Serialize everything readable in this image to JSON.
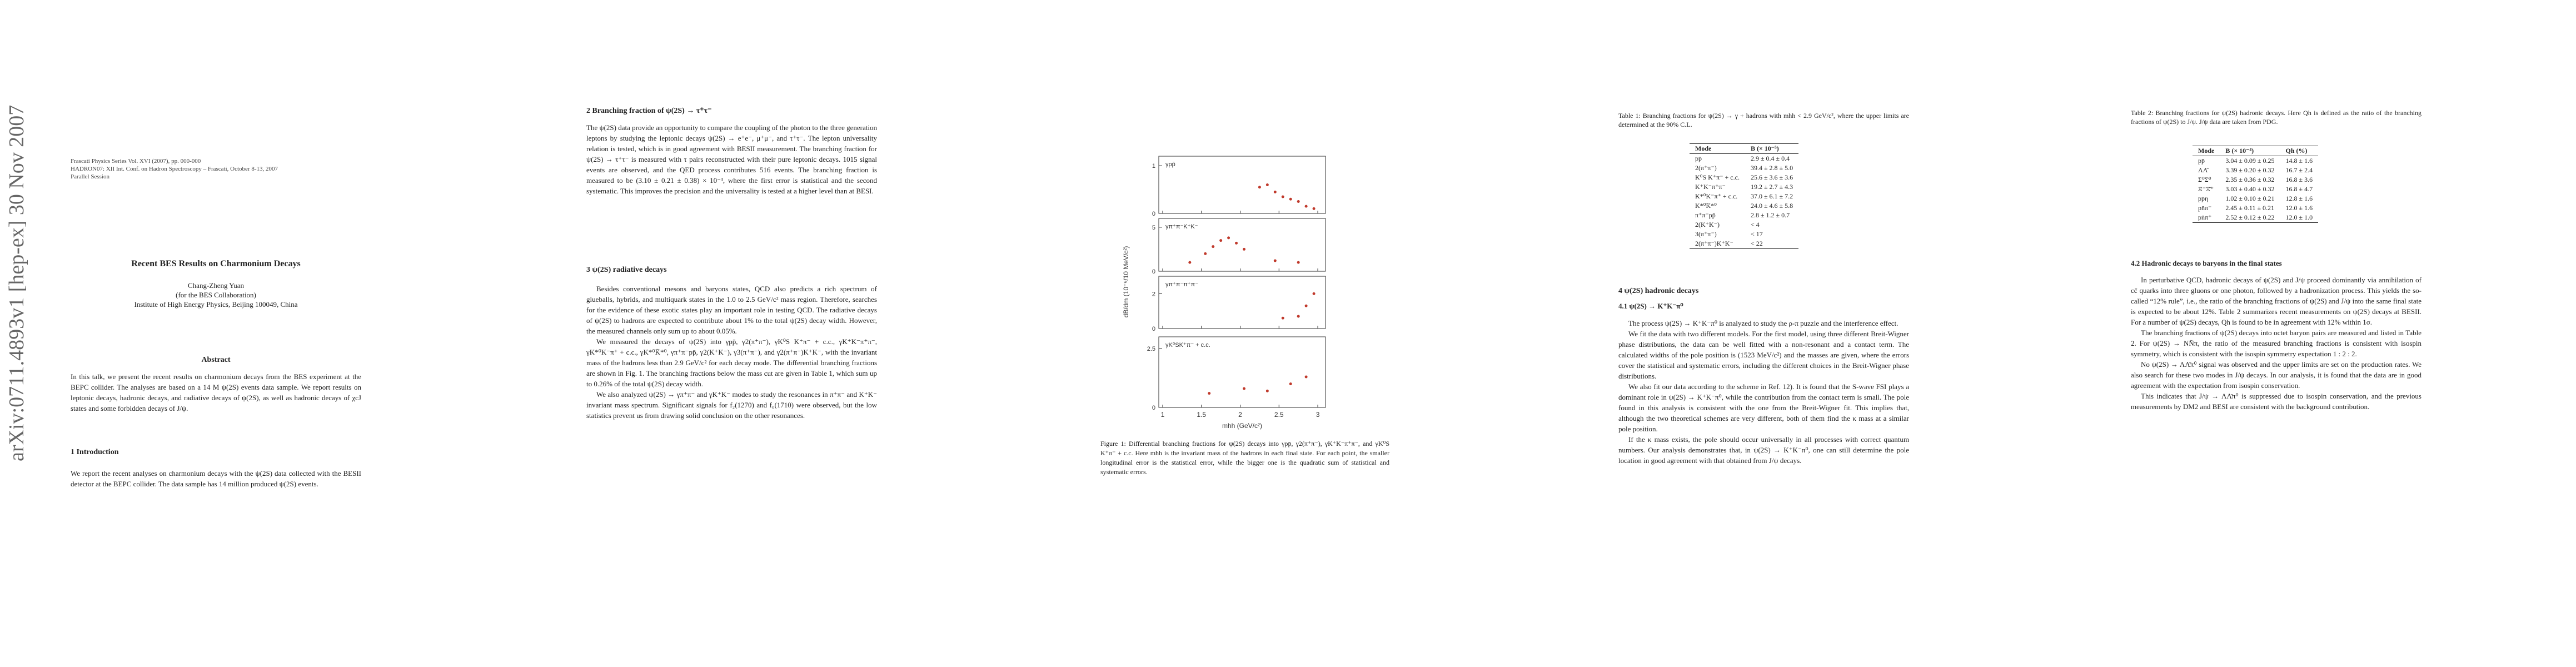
{
  "stamp": "arXiv:0711.4893v1  [hep-ex]  30 Nov 2007",
  "page1": {
    "header": [
      "Frascati Physics Series Vol. XVI (2007), pp. 000-000",
      "HADRON07: XII Int. Conf. on Hadron Spectroscopy – Frascati, October 8-13, 2007",
      "Parallel Session"
    ],
    "title": "Recent BES Results on Charmonium Decays",
    "author": "Chang-Zheng Yuan",
    "collab": "(for the BES Collaboration)",
    "institute": "Institute of High Energy Physics, Beijing 100049, China",
    "abstract_heading": "Abstract",
    "abstract": "In this talk, we present the recent results on charmonium decays from the BES experiment at the BEPC collider. The analyses are based on a 14 M ψ(2S) events data sample. We report results on leptonic decays, hadronic decays, and radiative decays of ψ(2S), as well as hadronic decays of χcJ states and some forbidden decays of J/ψ.",
    "section1_heading": "1    Introduction",
    "section1_text": "We report the recent analyses on charmonium decays with the ψ(2S) data collected with the BESII detector at the BEPC collider. The data sample has 14 million produced ψ(2S) events."
  },
  "page2": {
    "section2_heading": "2    Branching fraction of ψ(2S) → τ⁺τ⁻",
    "section2_text": "The ψ(2S) data provide an opportunity to compare the coupling of the photon to the three generation leptons by studying the leptonic decays ψ(2S) → e⁺e⁻, μ⁺μ⁻, and τ⁺τ⁻. The lepton universality relation is tested, which is in good agreement with BESII measurement. The branching fraction for ψ(2S) → τ⁺τ⁻ is measured with τ pairs reconstructed with their pure leptonic decays. 1015 signal events are observed, and the QED process contributes 516 events. The branching fraction is measured to be (3.10 ± 0.21 ± 0.38) × 10⁻³, where the first error is statistical and the second systematic. This improves the precision and the universality is tested at a higher level than at BESI.",
    "section3_heading": "3    ψ(2S) radiative decays",
    "section3_paragraphs": [
      "Besides conventional mesons and baryons states, QCD also predicts a rich spectrum of glueballs, hybrids, and multiquark states in the 1.0 to 2.5 GeV/c² mass region. Therefore, searches for the evidence of these exotic states play an important role in testing QCD. The radiative decays of ψ(2S) to hadrons are expected to contribute about 1% to the total ψ(2S) decay width. However, the measured channels only sum up to about 0.05%.",
      "We measured the decays of ψ(2S) into γpp̄, γ2(π⁺π⁻), γK⁰S K⁺π⁻ + c.c., γK⁺K⁻π⁺π⁻, γK*⁰K⁻π⁺ + c.c., γK*⁰K̄*⁰, γπ⁺π⁻pp̄, γ2(K⁺K⁻), γ3(π⁺π⁻), and γ2(π⁺π⁻)K⁺K⁻, with the invariant mass of the hadrons less than 2.9 GeV/c² for each decay mode. The differential branching fractions are shown in Fig. 1. The branching fractions below the mass cut are given in Table 1, which sum up to 0.26% of the total ψ(2S) decay width.",
      "We also analyzed ψ(2S) → γπ⁺π⁻ and γK⁺K⁻ modes to study the resonances in π⁺π⁻ and K⁺K⁻ invariant mass spectrum. Significant signals for f₂(1270) and f₀(1710) were observed, but the low statistics prevent us from drawing solid conclusion on the other resonances."
    ]
  },
  "page3": {
    "caption": "Figure 1: Differential branching fractions for ψ(2S) decays into γpp̄, γ2(π⁺π⁻), γK⁺K⁻π⁺π⁻, and γK⁰S K⁺π⁻ + c.c. Here mhh is the invariant mass of the hadrons in each final state. For each point, the smaller longitudinal error is the statistical error, while the bigger one is the quadratic sum of statistical and systematic errors."
  },
  "chart_data": {
    "type": "scatter",
    "xlabel": "mhh (GeV/c²)",
    "ylabel": "dB/dm (10⁻⁶/10 MeV/c²)",
    "xlim": [
      0.95,
      3.1
    ],
    "xticks": [
      1,
      1.5,
      2,
      2.5,
      3
    ],
    "color": "#c0392b",
    "panels": [
      {
        "label": "γpp̄",
        "ylim": [
          0,
          1.2
        ],
        "yticks": [
          0,
          1
        ],
        "x": [
          2.25,
          2.35,
          2.45,
          2.55,
          2.65,
          2.75,
          2.85,
          2.95
        ],
        "values": [
          0.55,
          0.6,
          0.45,
          0.35,
          0.3,
          0.25,
          0.15,
          0.1
        ]
      },
      {
        "label": "γπ⁺π⁻K⁺K⁻",
        "ylim": [
          0,
          6
        ],
        "yticks": [
          0,
          5
        ],
        "x": [
          1.35,
          1.55,
          1.65,
          1.75,
          1.85,
          1.95,
          2.05,
          2.45,
          2.75
        ],
        "values": [
          1.0,
          2.0,
          2.8,
          3.5,
          3.8,
          3.2,
          2.5,
          1.2,
          1.0
        ]
      },
      {
        "label": "γπ⁺π⁻π⁺π⁻",
        "ylim": [
          0,
          3
        ],
        "yticks": [
          0,
          2
        ],
        "x": [
          2.55,
          2.75,
          2.85,
          2.95
        ],
        "values": [
          0.6,
          0.7,
          1.3,
          2.0
        ]
      },
      {
        "label": "γK⁰SK⁺π⁻ + c.c.",
        "ylim": [
          0,
          3
        ],
        "yticks": [
          0,
          2.5
        ],
        "x": [
          1.6,
          2.05,
          2.35,
          2.65,
          2.85
        ],
        "values": [
          0.6,
          0.8,
          0.7,
          1.0,
          1.3
        ]
      }
    ]
  },
  "page4": {
    "table1": {
      "caption": "Table 1: Branching fractions for ψ(2S) → γ + hadrons with mhh < 2.9 GeV/c², where the upper limits are determined at the 90% C.L.",
      "columns": [
        "Mode",
        "B (× 10⁻⁵)"
      ],
      "rows": [
        [
          "pp̄",
          "2.9 ± 0.4 ± 0.4"
        ],
        [
          "2(π⁺π⁻)",
          "39.4 ± 2.8 ± 5.0"
        ],
        [
          "K⁰S K⁺π⁻ + c.c.",
          "25.6 ± 3.6 ± 3.6"
        ],
        [
          "K⁺K⁻π⁺π⁻",
          "19.2 ± 2.7 ± 4.3"
        ],
        [
          "K*⁰K⁻π⁺ + c.c.",
          "37.0 ± 6.1 ± 7.2"
        ],
        [
          "K*⁰K̄*⁰",
          "24.0 ± 4.6 ± 5.8"
        ],
        [
          "π⁺π⁻pp̄",
          "2.8 ± 1.2 ± 0.7"
        ],
        [
          "2(K⁺K⁻)",
          "< 4"
        ],
        [
          "3(π⁺π⁻)",
          "< 17"
        ],
        [
          "2(π⁺π⁻)K⁺K⁻",
          "< 22"
        ]
      ]
    },
    "section4_heading": "4    ψ(2S) hadronic decays",
    "section41_heading": "4.1    ψ(2S) → K⁺K⁻π⁰",
    "section41_paragraphs": [
      "The process ψ(2S) → K⁺K⁻π⁰ is analyzed to study the ρ-π puzzle and the interference effect.",
      "We fit the data with two different models. For the first model, using three different Breit-Wigner phase distributions, the data can be well fitted with a non-resonant and a contact term. The calculated widths of the pole position is (1523 MeV/c²) and the masses are given, where the errors cover the statistical and systematic errors, including the different choices in the Breit-Wigner phase distributions.",
      "We also fit our data according to the scheme in Ref. 12). It is found that the S-wave FSI plays a dominant role in ψ(2S) → K⁺K⁻π⁰, while the contribution from the contact term is small. The pole found in this analysis is consistent with the one from the Breit-Wigner fit. This implies that, although the two theoretical schemes are very different, both of them find the κ mass at a similar pole position.",
      "If the κ mass exists, the pole should occur universally in all processes with correct quantum numbers. Our analysis demonstrates that, in ψ(2S) → K⁺K⁻π⁰, one can still determine the pole location in good agreement with that obtained from J/ψ decays."
    ]
  },
  "page5": {
    "table2": {
      "caption": "Table 2: Branching fractions for ψ(2S) hadronic decays. Here Qh is defined as the ratio of the branching fractions of ψ(2S) to J/ψ. J/ψ data are taken from PDG.",
      "columns": [
        "Mode",
        "B (× 10⁻⁴)",
        "Qh (%)"
      ],
      "rows": [
        [
          "pp̄",
          "3.04 ± 0.09 ± 0.25",
          "14.8 ± 1.6"
        ],
        [
          "ΛΛ̄",
          "3.39 ± 0.20 ± 0.32",
          "16.7 ± 2.4"
        ],
        [
          "Σ⁰Σ̄⁰",
          "2.35 ± 0.36 ± 0.32",
          "16.8 ± 3.6"
        ],
        [
          "Ξ⁻Ξ̄⁺",
          "3.03 ± 0.40 ± 0.32",
          "16.8 ± 4.7"
        ],
        [
          "pp̄η",
          "1.02 ± 0.10 ± 0.21",
          "12.8 ± 1.6"
        ],
        [
          "pn̄π⁻",
          "2.45 ± 0.11 ± 0.21",
          "12.0 ± 1.6"
        ],
        [
          "pn̄π⁺",
          "2.52 ± 0.12 ± 0.22",
          "12.0 ± 1.0"
        ]
      ]
    },
    "section42_heading": "4.2    Hadronic decays to baryons in the final states",
    "section42_paragraphs": [
      "In perturbative QCD, hadronic decays of ψ(2S) and J/ψ proceed dominantly via annihilation of cc̄ quarks into three gluons or one photon, followed by a hadronization process. This yields the so-called “12% rule”, i.e., the ratio of the branching fractions of ψ(2S) and J/ψ into the same final state is expected to be about 12%. Table 2 summarizes recent measurements on ψ(2S) decays at BESII. For a number of ψ(2S) decays, Qh is found to be in agreement with 12% within 1σ.",
      "The branching fractions of ψ(2S) decays into octet baryon pairs are measured and listed in Table 2. For ψ(2S) → NN̄π, the ratio of the measured branching fractions is consistent with isospin symmetry, which is consistent with the isospin symmetry expectation 1 : 2 : 2.",
      "No ψ(2S) → ΛΛ̄π⁰ signal was observed and the upper limits are set on the production rates. We also search for these two modes in J/ψ decays. In our analysis, it is found that the data are in good agreement with the expectation from isospin conservation.",
      "This indicates that J/ψ → ΛΛ̄π⁰ is suppressed due to isospin conservation, and the previous measurements by DM2 and BESI are consistent with the background contribution."
    ]
  }
}
